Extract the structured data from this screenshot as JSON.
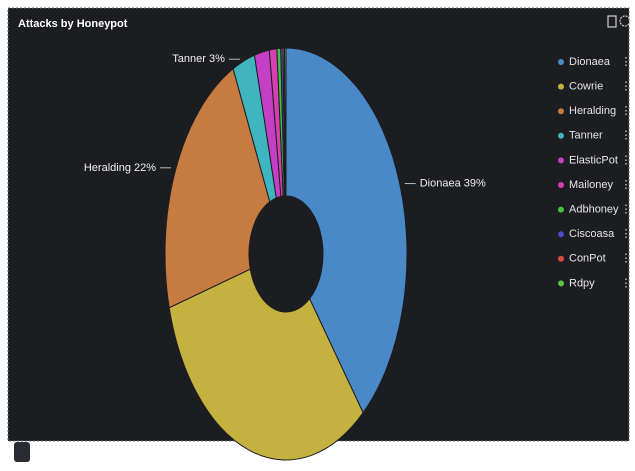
{
  "chart_data": {
    "type": "donut",
    "title": "Attacks by Honeypot",
    "categories": [
      "Dionaea",
      "Cowrie",
      "Heralding",
      "Tanner",
      "ElasticPot",
      "Mailoney",
      "Adbhoney",
      "Ciscoasa",
      "ConPot",
      "Rdpy"
    ],
    "values": [
      39,
      31.8,
      22,
      3,
      2,
      1,
      0.5,
      0.3,
      0.2,
      0.2
    ],
    "value_labels": [
      "39%",
      null,
      "22%",
      "3%",
      null,
      null,
      null,
      null,
      null,
      null
    ],
    "colors": [
      "#4a89c8",
      "#c4b13f",
      "#c67c40",
      "#3fb5c0",
      "#c43fc4",
      "#d63fb0",
      "#3fc43f",
      "#4a4ac8",
      "#d84a3f",
      "#5ac43f"
    ],
    "legend": "right"
  }
}
